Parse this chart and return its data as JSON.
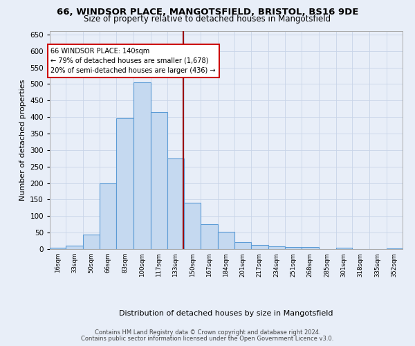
{
  "title_line1": "66, WINDSOR PLACE, MANGOTSFIELD, BRISTOL, BS16 9DE",
  "title_line2": "Size of property relative to detached houses in Mangotsfield",
  "xlabel": "Distribution of detached houses by size in Mangotsfield",
  "ylabel": "Number of detached properties",
  "bar_color": "#c5d9f0",
  "bar_edge_color": "#5b9bd5",
  "vline_value": 140,
  "vline_color": "#990000",
  "categories": [
    "16sqm",
    "33sqm",
    "50sqm",
    "66sqm",
    "83sqm",
    "100sqm",
    "117sqm",
    "133sqm",
    "150sqm",
    "167sqm",
    "184sqm",
    "201sqm",
    "217sqm",
    "234sqm",
    "251sqm",
    "268sqm",
    "285sqm",
    "301sqm",
    "318sqm",
    "335sqm",
    "352sqm"
  ],
  "bin_edges": [
    8,
    24,
    41,
    57,
    74,
    91,
    108,
    124,
    141,
    157,
    174,
    191,
    207,
    224,
    241,
    257,
    274,
    291,
    307,
    324,
    341,
    357
  ],
  "bar_heights": [
    5,
    10,
    45,
    200,
    395,
    505,
    415,
    275,
    140,
    75,
    52,
    22,
    12,
    8,
    7,
    6,
    0,
    5,
    0,
    0,
    3
  ],
  "ylim": [
    0,
    660
  ],
  "yticks": [
    0,
    50,
    100,
    150,
    200,
    250,
    300,
    350,
    400,
    450,
    500,
    550,
    600,
    650
  ],
  "annotation_text": "66 WINDSOR PLACE: 140sqm\n← 79% of detached houses are smaller (1,678)\n20% of semi-detached houses are larger (436) →",
  "annotation_box_color": "#ffffff",
  "annotation_box_edge_color": "#cc0000",
  "footer_line1": "Contains HM Land Registry data © Crown copyright and database right 2024.",
  "footer_line2": "Contains public sector information licensed under the Open Government Licence v3.0.",
  "grid_color": "#c8d4e8",
  "background_color": "#e8eef8",
  "figsize": [
    6.0,
    5.0
  ],
  "dpi": 100
}
